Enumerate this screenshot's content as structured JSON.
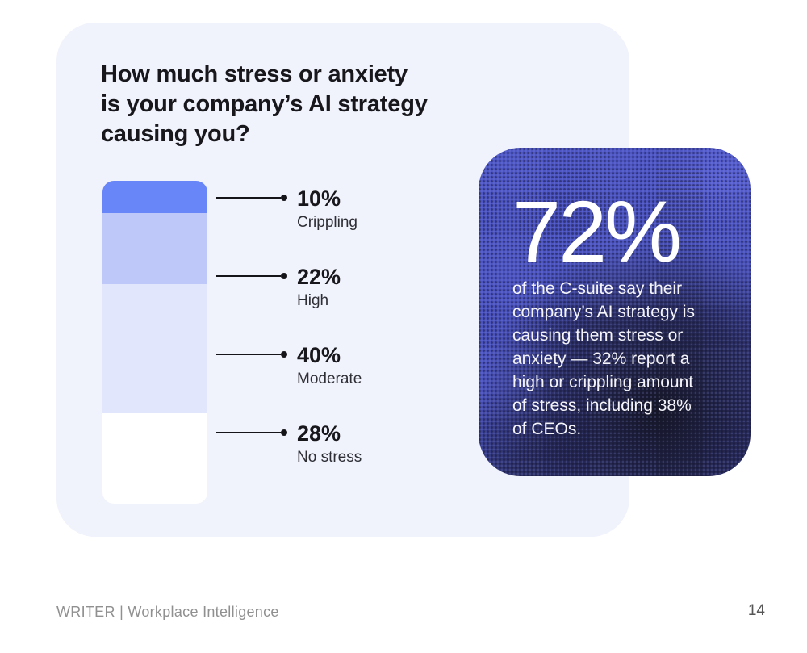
{
  "card": {
    "title": "How much stress or anxiety\nis your company’s AI strategy\ncausing you?"
  },
  "chart_data": {
    "type": "bar",
    "subtype": "single-stacked-vertical-bar",
    "title": "How much stress or anxiety is your company’s AI strategy causing you?",
    "unit": "%",
    "categories": [
      "Crippling",
      "High",
      "Moderate",
      "No stress"
    ],
    "values": [
      10,
      22,
      40,
      28
    ],
    "legend_position": "right-callouts",
    "grid": false,
    "segments": [
      {
        "label": "Crippling",
        "value": 10,
        "pct_label": "10%",
        "color": "#6886f7"
      },
      {
        "label": "High",
        "value": 22,
        "pct_label": "22%",
        "color": "#bec9fa"
      },
      {
        "label": "Moderate",
        "value": 40,
        "pct_label": "40%",
        "color": "#e2e6fc"
      },
      {
        "label": "No stress",
        "value": 28,
        "pct_label": "28%",
        "color": "#ffffff"
      }
    ]
  },
  "stat_card": {
    "big_number": "72%",
    "description": "of the C-suite say their\ncompany’s AI strategy is\ncausing them stress or\nanxiety — 32% report a\nhigh or crippling amount\nof stress, including 38%\nof CEOs.",
    "bg_color": "#4a52bd",
    "text_color": "#ffffff"
  },
  "footer": {
    "brand": "WRITER | Workplace Intelligence",
    "page_number": "14"
  },
  "colors": {
    "page_bg": "#ffffff",
    "panel_bg": "#f0f2fc",
    "text_dark": "#17171c",
    "footer_gray": "#909090"
  }
}
